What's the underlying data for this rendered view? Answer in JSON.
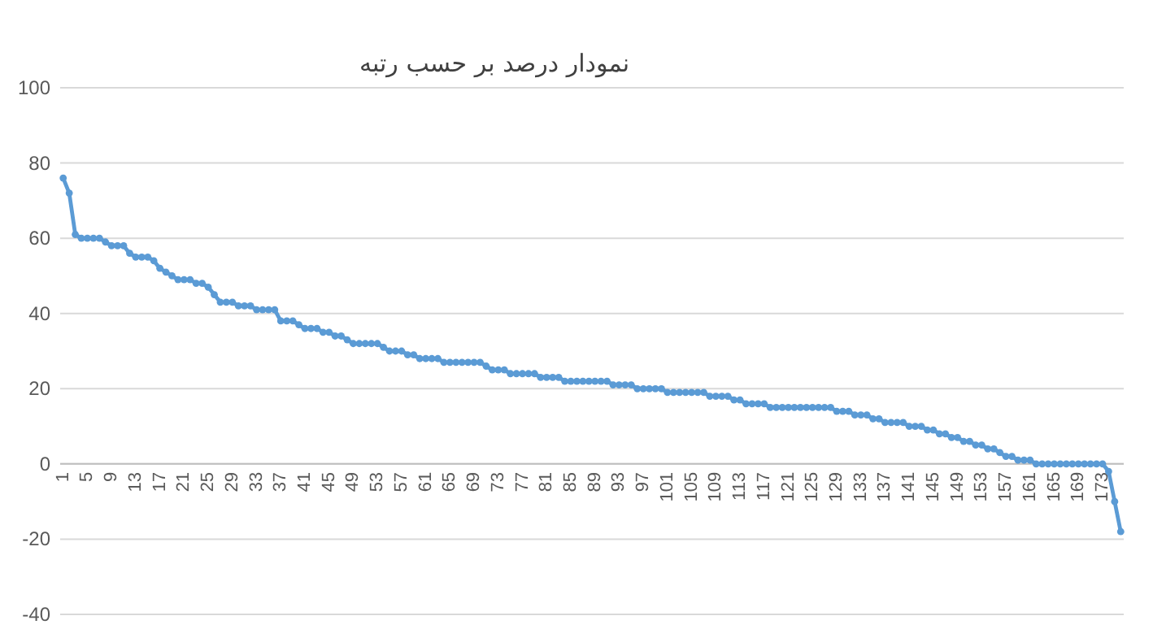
{
  "chart_data": {
    "type": "line",
    "title": "نمودار درصد بر حسب رتبه",
    "categories": [
      "1",
      null,
      null,
      null,
      "5",
      null,
      null,
      null,
      "9",
      null,
      null,
      null,
      "13",
      null,
      null,
      null,
      "17",
      null,
      null,
      null,
      "21",
      null,
      null,
      null,
      "25",
      null,
      null,
      null,
      "29",
      null,
      null,
      null,
      "33",
      null,
      null,
      null,
      "37",
      null,
      null,
      null,
      "41",
      null,
      null,
      null,
      "45",
      null,
      null,
      null,
      "49",
      null,
      null,
      null,
      "53",
      null,
      null,
      null,
      "57",
      null,
      null,
      null,
      "61",
      null,
      null,
      null,
      "65",
      null,
      null,
      null,
      "69",
      null,
      null,
      null,
      "73",
      null,
      null,
      null,
      "77",
      null,
      null,
      null,
      "81",
      null,
      null,
      null,
      "85",
      null,
      null,
      null,
      "89",
      null,
      null,
      null,
      "93",
      null,
      null,
      null,
      "97",
      null,
      null,
      null,
      "101",
      null,
      null,
      null,
      "105",
      null,
      null,
      null,
      "109",
      null,
      null,
      null,
      "113",
      null,
      null,
      null,
      "117",
      null,
      null,
      null,
      "121",
      null,
      null,
      null,
      "125",
      null,
      null,
      null,
      "129",
      null,
      null,
      null,
      "133",
      null,
      null,
      null,
      "137",
      null,
      null,
      null,
      "141",
      null,
      null,
      null,
      "145",
      null,
      null,
      null,
      "149",
      null,
      null,
      null,
      "153",
      null,
      null,
      null,
      "157",
      null,
      null,
      null,
      "161",
      null,
      null,
      null,
      "165",
      null,
      null,
      null,
      "169",
      null,
      null,
      null,
      "173",
      null,
      null,
      null
    ],
    "values": [
      76,
      72,
      61,
      60,
      60,
      60,
      60,
      59,
      58,
      58,
      58,
      56,
      55,
      55,
      55,
      54,
      52,
      51,
      50,
      49,
      49,
      49,
      48,
      48,
      47,
      45,
      43,
      43,
      43,
      42,
      42,
      42,
      41,
      41,
      41,
      41,
      38,
      38,
      38,
      37,
      36,
      36,
      36,
      35,
      35,
      34,
      34,
      33,
      32,
      32,
      32,
      32,
      32,
      31,
      30,
      30,
      30,
      29,
      29,
      28,
      28,
      28,
      28,
      27,
      27,
      27,
      27,
      27,
      27,
      27,
      26,
      25,
      25,
      25,
      24,
      24,
      24,
      24,
      24,
      23,
      23,
      23,
      23,
      22,
      22,
      22,
      22,
      22,
      22,
      22,
      22,
      21,
      21,
      21,
      21,
      20,
      20,
      20,
      20,
      20,
      19,
      19,
      19,
      19,
      19,
      19,
      19,
      18,
      18,
      18,
      18,
      17,
      17,
      16,
      16,
      16,
      16,
      15,
      15,
      15,
      15,
      15,
      15,
      15,
      15,
      15,
      15,
      15,
      14,
      14,
      14,
      13,
      13,
      13,
      12,
      12,
      11,
      11,
      11,
      11,
      10,
      10,
      10,
      9,
      9,
      8,
      8,
      7,
      7,
      6,
      6,
      5,
      5,
      4,
      4,
      3,
      2,
      2,
      1,
      1,
      1,
      0,
      0,
      0,
      0,
      0,
      0,
      0,
      0,
      0,
      0,
      0,
      0,
      -2,
      -10,
      -18
    ],
    "color": "#5b9bd5",
    "marker": "circle",
    "grid": "y",
    "ylim": [
      -40,
      100
    ],
    "yticks": [
      -40,
      -20,
      0,
      20,
      40,
      60,
      80,
      100
    ]
  }
}
